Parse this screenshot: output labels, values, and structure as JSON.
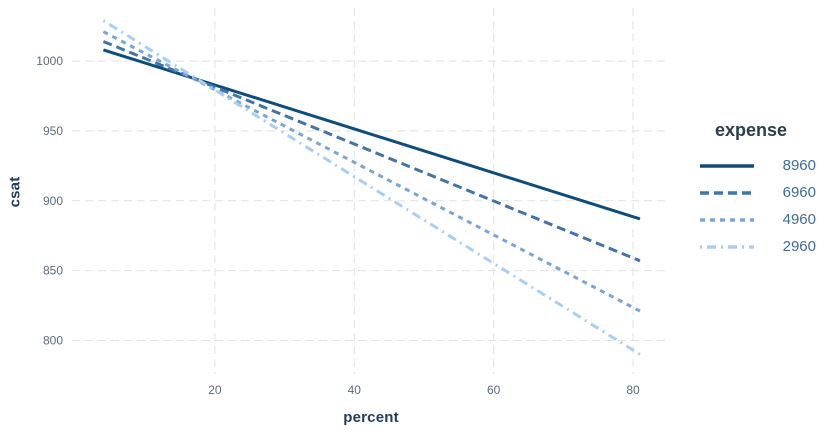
{
  "chart_data": {
    "type": "line",
    "title": "",
    "xlabel": "percent",
    "ylabel": "csat",
    "xlim": [
      -0.5,
      85.3
    ],
    "ylim": [
      776,
      1038
    ],
    "x_ticks": [
      20,
      40,
      60,
      80
    ],
    "y_ticks": [
      800,
      850,
      900,
      950,
      1000
    ],
    "grid": "dashed-major-both",
    "background": "#ffffff",
    "gridline_color": "#e2e2e2",
    "legend": {
      "title": "expense",
      "position": "right"
    },
    "series": [
      {
        "name": "8960",
        "color": "#0e4d7b",
        "linestyle": "solid",
        "dash": "",
        "points": [
          [
            4,
            1008
          ],
          [
            81,
            887
          ]
        ]
      },
      {
        "name": "6960",
        "color": "#4274a6",
        "linestyle": "dashed",
        "dash": "9 5",
        "points": [
          [
            4,
            1014
          ],
          [
            81,
            857
          ]
        ]
      },
      {
        "name": "4960",
        "color": "#7aa5d2",
        "linestyle": "dotted",
        "dash": "5 5",
        "points": [
          [
            4,
            1021
          ],
          [
            81,
            821
          ]
        ]
      },
      {
        "name": "2960",
        "color": "#a8cff2",
        "linestyle": "dashdot",
        "dash": "2 5 9 5",
        "points": [
          [
            4,
            1029
          ],
          [
            81,
            790
          ]
        ]
      }
    ]
  }
}
